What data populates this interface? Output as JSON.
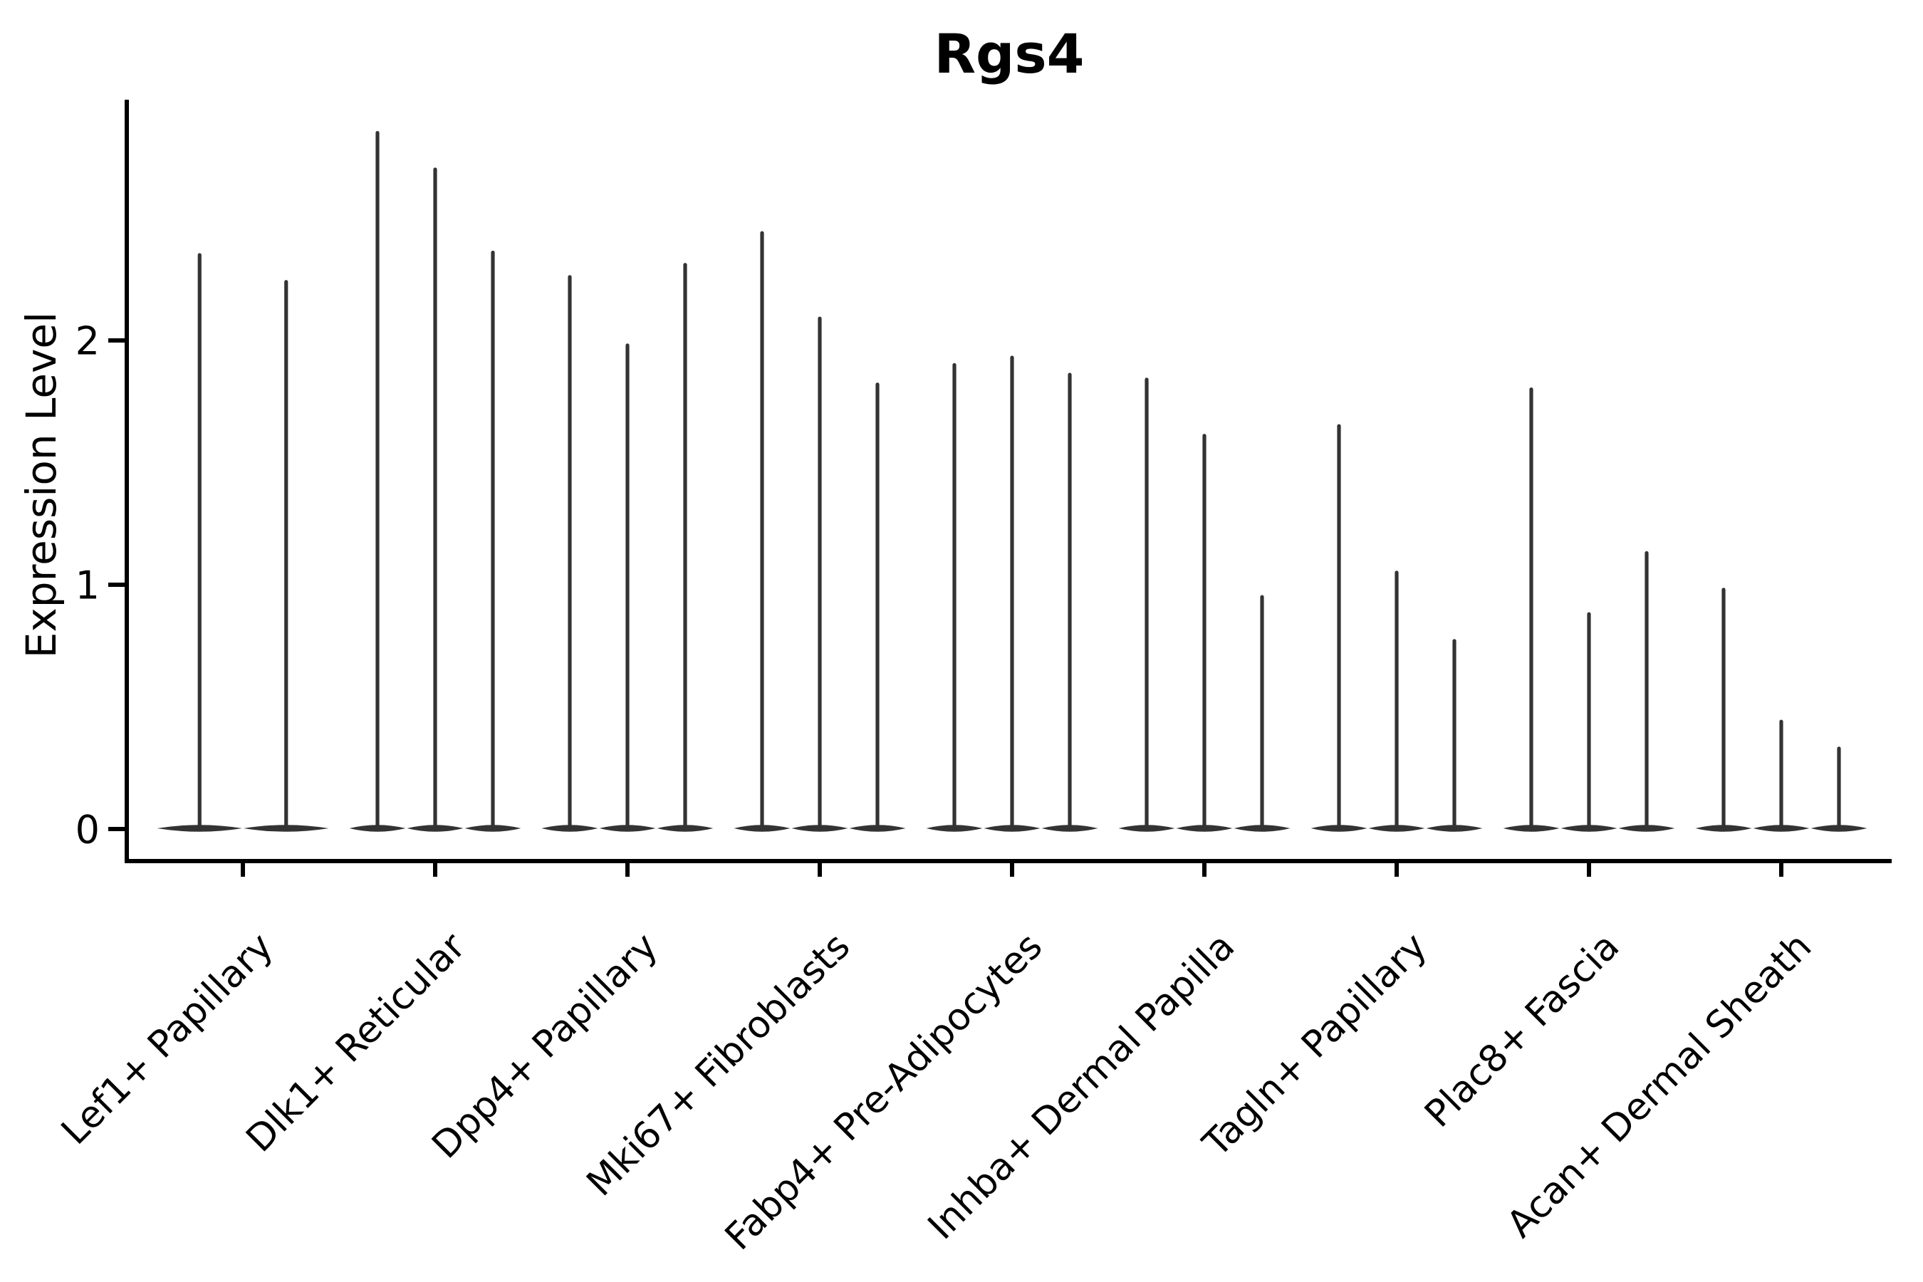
{
  "figure": {
    "title": "Rgs4",
    "y_axis_label": "Expression Level"
  },
  "chart_data": {
    "type": "violin",
    "title": "Rgs4",
    "xlabel": "",
    "ylabel": "Expression Level",
    "ylim": [
      0,
      3.0
    ],
    "yticks": [
      0,
      1,
      2
    ],
    "grid": false,
    "legend": "none",
    "background": "#ffffff",
    "violin_color": "#333333",
    "axis_color": "#000000",
    "categories": [
      "Lef1+ Papillary",
      "Dlk1+ Reticular",
      "Dpp4+ Papillary",
      "Mki67+ Fibroblasts",
      "Fabp4+ Pre-Adipocytes",
      "Inhba+ Dermal Papilla",
      "Tagln+ Papillary",
      "Plac8+ Fascia",
      "Acan+ Dermal Sheath"
    ],
    "groups": [
      {
        "category": "Lef1+ Papillary",
        "violin_maxima": [
          2.35,
          2.24
        ]
      },
      {
        "category": "Dlk1+ Reticular",
        "violin_maxima": [
          2.85,
          2.7,
          2.36
        ]
      },
      {
        "category": "Dpp4+ Papillary",
        "violin_maxima": [
          2.26,
          1.98,
          2.31
        ]
      },
      {
        "category": "Mki67+ Fibroblasts",
        "violin_maxima": [
          2.44,
          2.09,
          1.82
        ]
      },
      {
        "category": "Fabp4+ Pre-Adipocytes",
        "violin_maxima": [
          1.9,
          1.93,
          1.86
        ]
      },
      {
        "category": "Inhba+ Dermal Papilla",
        "violin_maxima": [
          1.84,
          1.61,
          0.95
        ]
      },
      {
        "category": "Tagln+ Papillary",
        "violin_maxima": [
          1.65,
          1.05,
          0.77
        ]
      },
      {
        "category": "Plac8+ Fascia",
        "violin_maxima": [
          1.8,
          0.88,
          1.13
        ]
      },
      {
        "category": "Acan+ Dermal Sheath",
        "violin_maxima": [
          0.98,
          0.44,
          0.33
        ]
      }
    ],
    "baseline_value": 0
  }
}
